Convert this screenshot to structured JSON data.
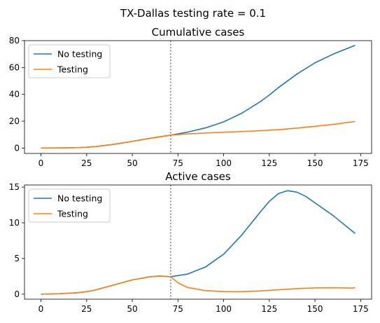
{
  "suptitle": "TX-Dallas testing rate = 0.1",
  "colors": {
    "no_testing": "#1f77b4",
    "testing": "#ff7f0e",
    "vline": "#808080",
    "axes": "#000000"
  },
  "chart_data": [
    {
      "type": "line",
      "title": "Cumulative cases",
      "xlabel": "",
      "ylabel": "",
      "xlim": [
        -9,
        181
      ],
      "ylim": [
        -4,
        80
      ],
      "xticks": [
        0,
        25,
        50,
        75,
        100,
        125,
        150,
        175
      ],
      "yticks": [
        0,
        20,
        40,
        60,
        80
      ],
      "vline_x": 71,
      "legend": {
        "placement": "top-left",
        "entries": [
          "No testing",
          "Testing"
        ]
      },
      "grid": false,
      "series": [
        {
          "name": "No testing",
          "color": "#1f77b4",
          "x": [
            0,
            10,
            20,
            25,
            30,
            40,
            50,
            60,
            71,
            80,
            90,
            100,
            110,
            120,
            125,
            130,
            140,
            150,
            160,
            172
          ],
          "y": [
            0,
            0.1,
            0.3,
            0.6,
            1.1,
            2.8,
            5.0,
            7.3,
            9.6,
            11.8,
            15.0,
            19.5,
            26.0,
            34.5,
            39.5,
            45.0,
            55.0,
            63.5,
            70.0,
            76.5
          ]
        },
        {
          "name": "Testing",
          "color": "#ff7f0e",
          "x": [
            0,
            10,
            20,
            25,
            30,
            40,
            50,
            60,
            71,
            80,
            90,
            100,
            110,
            120,
            130,
            140,
            150,
            160,
            172
          ],
          "y": [
            0,
            0.1,
            0.3,
            0.6,
            1.1,
            2.8,
            5.0,
            7.3,
            9.6,
            10.5,
            11.2,
            11.8,
            12.3,
            12.9,
            13.7,
            14.8,
            16.2,
            17.6,
            19.8
          ]
        }
      ]
    },
    {
      "type": "line",
      "title": "Active cases",
      "xlabel": "",
      "ylabel": "",
      "xlim": [
        -9,
        181
      ],
      "ylim": [
        -0.7,
        15.3
      ],
      "xticks": [
        0,
        25,
        50,
        75,
        100,
        125,
        150,
        175
      ],
      "yticks": [
        0,
        5,
        10,
        15
      ],
      "vline_x": 71,
      "legend": {
        "placement": "top-left",
        "entries": [
          "No testing",
          "Testing"
        ]
      },
      "grid": false,
      "series": [
        {
          "name": "No testing",
          "color": "#1f77b4",
          "x": [
            0,
            10,
            20,
            25,
            30,
            40,
            50,
            60,
            65,
            71,
            80,
            90,
            100,
            110,
            120,
            125,
            130,
            135,
            140,
            145,
            150,
            160,
            172
          ],
          "y": [
            0,
            0.06,
            0.2,
            0.35,
            0.6,
            1.3,
            2.0,
            2.45,
            2.55,
            2.45,
            2.8,
            3.8,
            5.6,
            8.3,
            11.5,
            13.0,
            14.1,
            14.5,
            14.3,
            13.7,
            12.8,
            11.0,
            8.5
          ]
        },
        {
          "name": "Testing",
          "color": "#ff7f0e",
          "x": [
            0,
            10,
            20,
            25,
            30,
            40,
            50,
            60,
            65,
            71,
            75,
            80,
            90,
            100,
            110,
            120,
            130,
            140,
            150,
            160,
            170,
            172
          ],
          "y": [
            0,
            0.06,
            0.2,
            0.35,
            0.6,
            1.3,
            2.0,
            2.45,
            2.55,
            2.45,
            1.6,
            0.95,
            0.5,
            0.36,
            0.35,
            0.45,
            0.62,
            0.78,
            0.88,
            0.9,
            0.85,
            0.92
          ]
        }
      ]
    }
  ]
}
